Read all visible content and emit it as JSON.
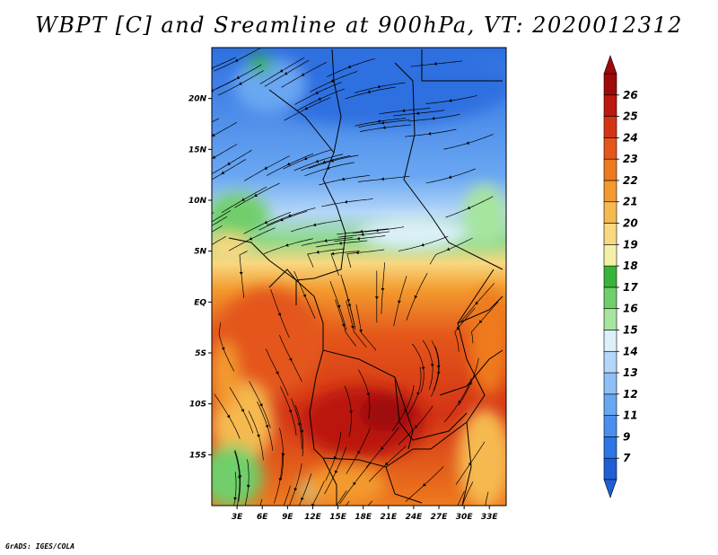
{
  "title": "WBPT [C] and Sreamline at 900hPa, VT: 2020012312",
  "credit": "GrADS: IGES/COLA",
  "map": {
    "lon_range": [
      0,
      35
    ],
    "lat_range": [
      -20,
      25
    ],
    "lat_ticks": [
      "20N",
      "15N",
      "10N",
      "5N",
      "EQ",
      "5S",
      "10S",
      "15S"
    ],
    "lon_ticks": [
      "3E",
      "6E",
      "9E",
      "12E",
      "15E",
      "18E",
      "21E",
      "24E",
      "27E",
      "30E",
      "33E"
    ]
  },
  "colorbar": {
    "labels": [
      "7",
      "9",
      "11",
      "12",
      "13",
      "14",
      "15",
      "16",
      "17",
      "18",
      "19",
      "20",
      "21",
      "22",
      "23",
      "24",
      "25",
      "26"
    ],
    "colors": [
      "#1f5fd6",
      "#2d75e6",
      "#4a8fee",
      "#6aa7f2",
      "#8ebff5",
      "#b4d6f8",
      "#dcf0fa",
      "#a6e59e",
      "#6fcf6b",
      "#38b43a",
      "#f5f0a8",
      "#f8d880",
      "#f6b950",
      "#f39a2e",
      "#ee7a1e",
      "#e4561a",
      "#d43416",
      "#bb1810",
      "#9e0a0a"
    ]
  }
}
